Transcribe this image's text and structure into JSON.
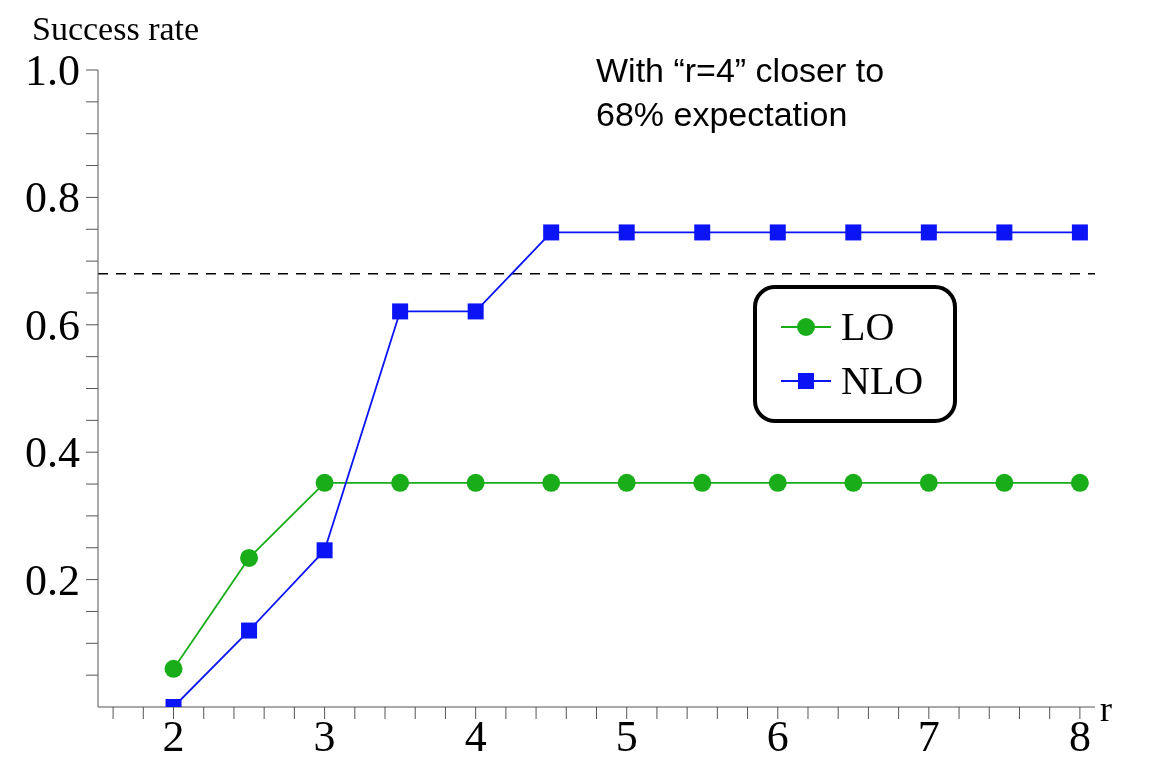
{
  "chart_data": {
    "type": "line",
    "xlabel": "r",
    "ylabel": "Success rate",
    "annotations": [
      "With “r=4” closer to 68% expectation"
    ],
    "x": [
      2,
      2.5,
      3,
      3.5,
      4,
      4.5,
      5,
      5.5,
      6,
      6.5,
      7,
      7.5,
      8
    ],
    "series": [
      {
        "name": "LO",
        "color": "#1aad1a",
        "marker": "circle",
        "values": [
          0.06,
          0.234,
          0.352,
          0.352,
          0.352,
          0.352,
          0.352,
          0.352,
          0.352,
          0.352,
          0.352,
          0.352,
          0.352
        ]
      },
      {
        "name": "NLO",
        "color": "#0a14f5",
        "marker": "square",
        "values": [
          0,
          0.12,
          0.246,
          0.621,
          0.621,
          0.745,
          0.745,
          0.745,
          0.745,
          0.745,
          0.745,
          0.745,
          0.745
        ]
      }
    ],
    "xlim": [
      1.5,
      8.1
    ],
    "xticks": [
      {
        "value": 1.6,
        "label": null
      },
      {
        "value": 1.8,
        "label": null
      },
      2,
      {
        "value": 2.2,
        "label": null
      },
      {
        "value": 2.4,
        "label": null
      },
      {
        "value": 2.6,
        "label": null
      },
      {
        "value": 2.8,
        "label": null
      },
      3,
      {
        "value": 3.2,
        "label": null
      },
      {
        "value": 3.4,
        "label": null
      },
      {
        "value": 3.6,
        "label": null
      },
      {
        "value": 3.8,
        "label": null
      },
      4,
      {
        "value": 4.2,
        "label": null
      },
      {
        "value": 4.4,
        "label": null
      },
      {
        "value": 4.6,
        "label": null
      },
      {
        "value": 4.8,
        "label": null
      },
      5,
      {
        "value": 5.2,
        "label": null
      },
      {
        "value": 5.4,
        "label": null
      },
      {
        "value": 5.6,
        "label": null
      },
      {
        "value": 5.8,
        "label": null
      },
      6,
      {
        "value": 6.2,
        "label": null
      },
      {
        "value": 6.4,
        "label": null
      },
      {
        "value": 6.6,
        "label": null
      },
      {
        "value": 6.8,
        "label": null
      },
      7,
      {
        "value": 7.2,
        "label": null
      },
      {
        "value": 7.4,
        "label": null
      },
      {
        "value": 7.6,
        "label": null
      },
      {
        "value": 7.8,
        "label": null
      },
      8
    ],
    "ylim": [
      0,
      1.0
    ],
    "yticks": [
      {
        "value": 0.05,
        "label": null
      },
      {
        "value": 0.1,
        "label": null
      },
      {
        "value": 0.15,
        "label": null
      },
      0.2,
      {
        "value": 0.25,
        "label": null
      },
      {
        "value": 0.3,
        "label": null
      },
      {
        "value": 0.35,
        "label": null
      },
      0.4,
      {
        "value": 0.45,
        "label": null
      },
      {
        "value": 0.5,
        "label": null
      },
      {
        "value": 0.55,
        "label": null
      },
      0.6,
      {
        "value": 0.65,
        "label": null
      },
      {
        "value": 0.7,
        "label": null
      },
      {
        "value": 0.75,
        "label": null
      },
      0.8,
      {
        "value": 0.85,
        "label": null
      },
      {
        "value": 0.9,
        "label": null
      },
      {
        "value": 0.95,
        "label": null
      },
      {
        "value": 1.0,
        "label": "1.0"
      }
    ],
    "ref_lines": [
      {
        "axis": "y",
        "value": 0.68,
        "color": "#000000",
        "line_style": "dashed"
      }
    ],
    "grid": false,
    "legend": "right",
    "line_style": "solid"
  }
}
